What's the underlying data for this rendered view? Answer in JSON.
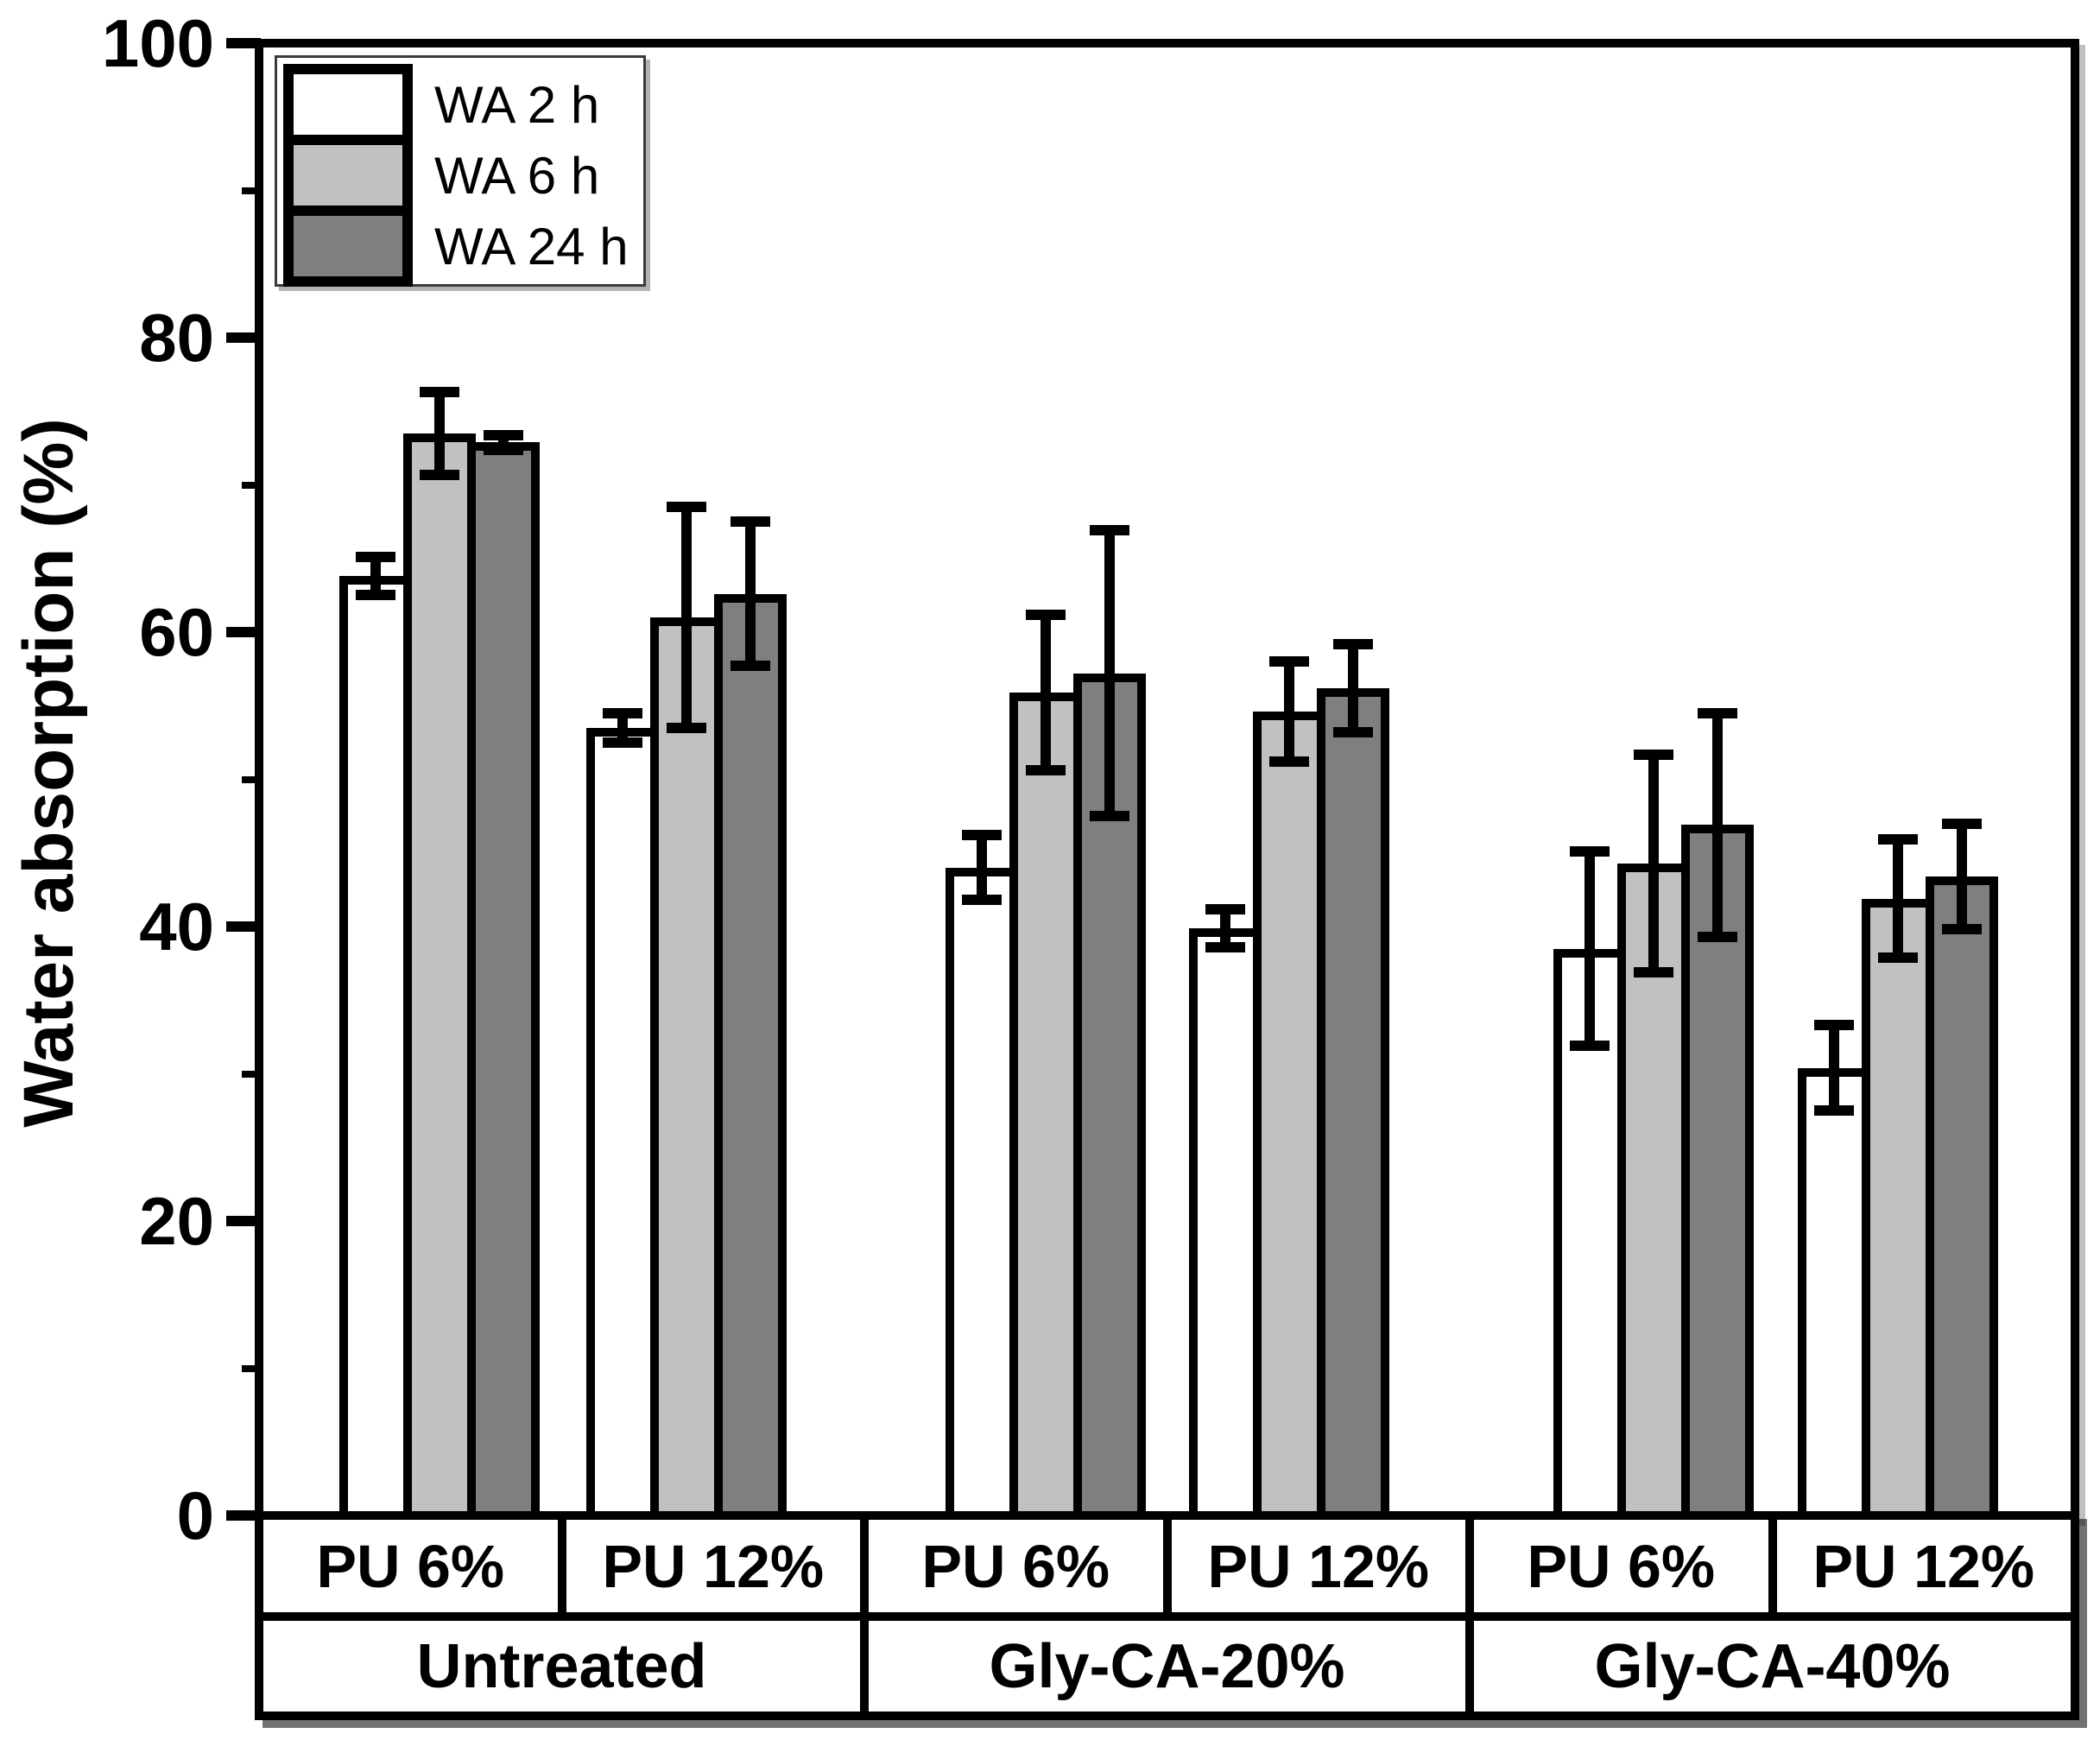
{
  "figure": {
    "ylabel": "Water absorption (%)"
  },
  "chart_data": {
    "type": "bar",
    "title": "",
    "xlabel": "",
    "ylabel": "Water absorption (%)",
    "ylim": [
      0,
      100
    ],
    "yticks_major": [
      0,
      20,
      40,
      60,
      80,
      100
    ],
    "yticks_minor": [
      10,
      30,
      50,
      70,
      90
    ],
    "grid": false,
    "legend_position": "top-left",
    "bar_outline_color": "#000000",
    "error_bars": true,
    "group_labels": [
      "PU 6%",
      "PU 12%",
      "PU 6%",
      "PU 12%",
      "PU 6%",
      "PU 12%"
    ],
    "treatments": [
      {
        "label": "Untreated",
        "cells": 2
      },
      {
        "label": "Gly-CA-20%",
        "cells": 2
      },
      {
        "label": "Gly-CA-40%",
        "cells": 2
      }
    ],
    "series": [
      {
        "name": "WA 2 h",
        "color": "#ffffff",
        "values": [
          63.8,
          53.5,
          44.0,
          39.9,
          38.5,
          30.4
        ],
        "errors": [
          1.3,
          1.0,
          2.2,
          1.3,
          6.6,
          2.9
        ]
      },
      {
        "name": "WA 6 h",
        "color": "#c1c1c1",
        "values": [
          73.5,
          61.0,
          55.9,
          54.6,
          44.3,
          41.9
        ],
        "errors": [
          2.8,
          7.5,
          5.3,
          3.4,
          7.4,
          4.0
        ]
      },
      {
        "name": "WA 24 h",
        "color": "#7f7f7f",
        "values": [
          72.9,
          62.6,
          57.2,
          56.2,
          46.9,
          43.4
        ],
        "errors": [
          0.5,
          4.9,
          9.7,
          3.0,
          7.6,
          3.6
        ]
      }
    ]
  }
}
